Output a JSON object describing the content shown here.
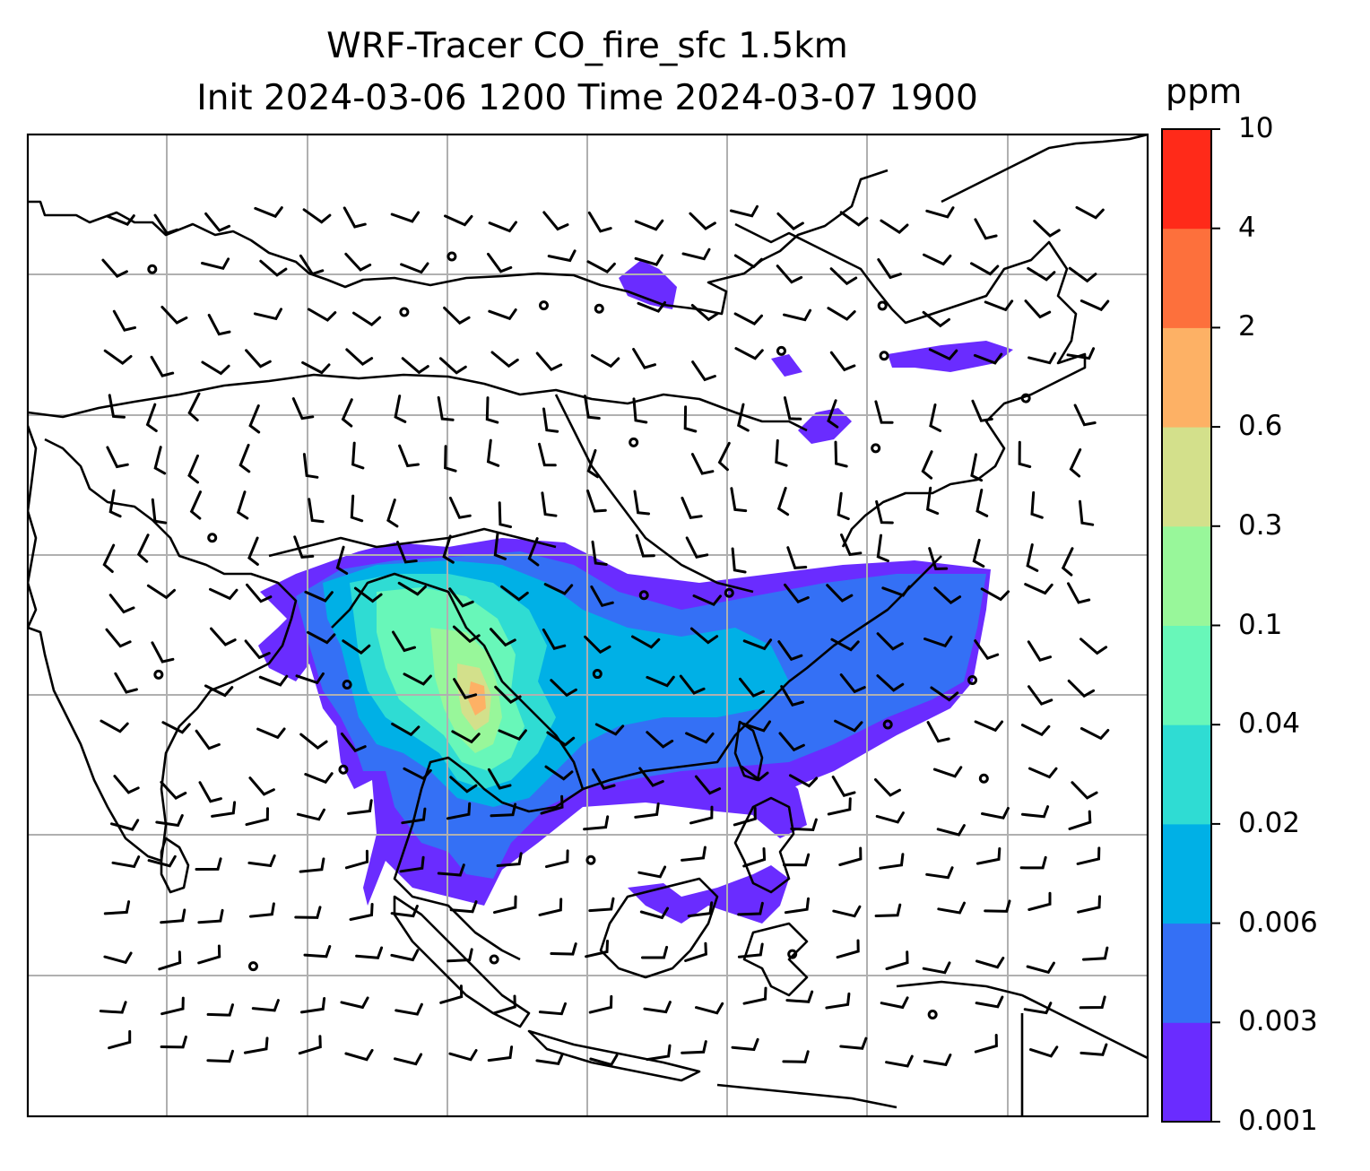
{
  "title": {
    "line1": "WRF-Tracer CO_fire_sfc 1.5km",
    "line2": "Init 2024-03-06 1200 Time 2024-03-07 1900"
  },
  "colorbar": {
    "unit": "ppm",
    "levels": [
      "0.001",
      "0.003",
      "0.006",
      "0.02",
      "0.04",
      "0.1",
      "0.3",
      "0.6",
      "2",
      "4",
      "10"
    ],
    "colors": [
      "#6a2cff",
      "#3470f5",
      "#00b0e6",
      "#2fdcd3",
      "#68f7b9",
      "#98f79a",
      "#d3e08b",
      "#fdb165",
      "#fd703c",
      "#ff2a19"
    ]
  },
  "map": {
    "region": "South, Southeast and East Asia",
    "gridlines": true,
    "coastlines": true,
    "wind_barbs": true,
    "colors": {
      "coast": "#000000",
      "grid": "#b0b0b0",
      "frame": "#000000"
    }
  }
}
